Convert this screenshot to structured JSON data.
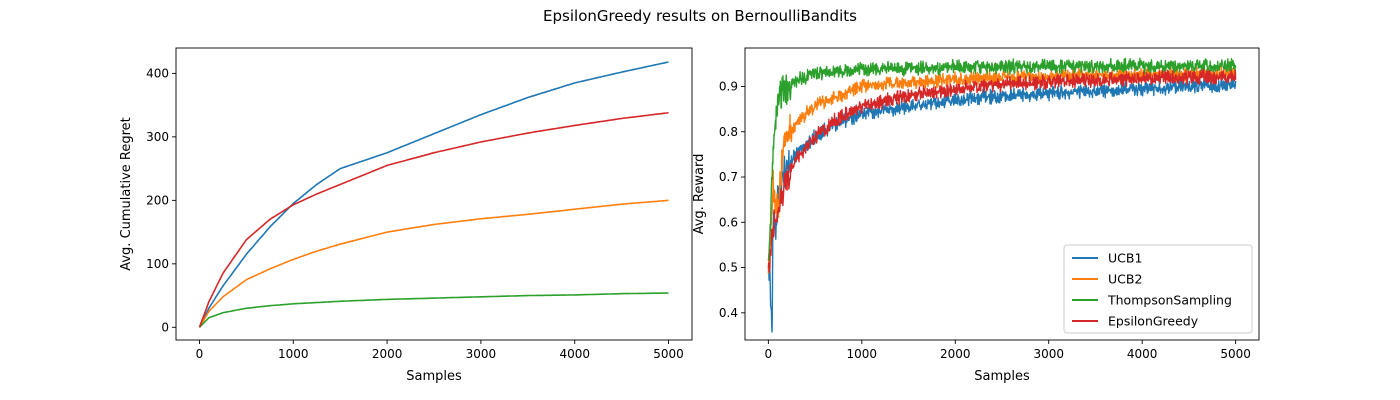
{
  "figure_title": "EpsilonGreedy results on BernoulliBandits",
  "chart_data": [
    {
      "type": "line",
      "xlabel": "Samples",
      "ylabel": "Avg. Cumulative Regret",
      "xlim": [
        -250,
        5250
      ],
      "ylim": [
        -20,
        440
      ],
      "xticks": [
        0,
        1000,
        2000,
        3000,
        4000,
        5000
      ],
      "yticks": [
        0,
        100,
        200,
        300,
        400
      ],
      "grid": false,
      "legend": "none",
      "series": [
        {
          "name": "UCB1",
          "color": "#1f77b4",
          "x": [
            0,
            100,
            250,
            500,
            750,
            1000,
            1250,
            1500,
            2000,
            2500,
            3000,
            3500,
            4000,
            4500,
            5000
          ],
          "y": [
            0,
            30,
            65,
            115,
            158,
            195,
            225,
            250,
            275,
            305,
            335,
            362,
            385,
            402,
            418
          ]
        },
        {
          "name": "UCB2",
          "color": "#ff7f0e",
          "x": [
            0,
            100,
            250,
            500,
            750,
            1000,
            1250,
            1500,
            2000,
            2500,
            3000,
            3500,
            4000,
            4500,
            5000
          ],
          "y": [
            0,
            25,
            48,
            75,
            92,
            107,
            120,
            131,
            150,
            162,
            171,
            178,
            186,
            194,
            200
          ]
        },
        {
          "name": "ThompsonSampling",
          "color": "#2ca02c",
          "x": [
            0,
            100,
            250,
            500,
            750,
            1000,
            1500,
            2000,
            2500,
            3000,
            3500,
            4000,
            4500,
            5000
          ],
          "y": [
            0,
            15,
            23,
            30,
            34,
            37,
            41,
            44,
            46,
            48,
            50,
            51,
            53,
            54
          ]
        },
        {
          "name": "EpsilonGreedy",
          "color": "#d62728",
          "x": [
            0,
            100,
            250,
            500,
            750,
            1000,
            1250,
            1500,
            2000,
            2500,
            3000,
            3500,
            4000,
            4500,
            5000
          ],
          "y": [
            0,
            40,
            85,
            138,
            170,
            193,
            210,
            225,
            255,
            275,
            292,
            306,
            318,
            329,
            338
          ]
        }
      ]
    },
    {
      "type": "line",
      "xlabel": "Samples",
      "ylabel": "Avg. Reward",
      "xlim": [
        -250,
        5250
      ],
      "ylim": [
        0.34,
        0.985
      ],
      "xticks": [
        0,
        1000,
        2000,
        3000,
        4000,
        5000
      ],
      "yticks": [
        0.4,
        0.5,
        0.6,
        0.7,
        0.8,
        0.9
      ],
      "grid": false,
      "legend": "lower-right",
      "noise_amplitude": 0.018,
      "series": [
        {
          "name": "UCB1",
          "color": "#1f77b4",
          "x": [
            0,
            20,
            40,
            50,
            80,
            100,
            150,
            200,
            300,
            500,
            750,
            1000,
            1500,
            2000,
            2500,
            3000,
            3500,
            4000,
            4500,
            5000
          ],
          "y": [
            0.5,
            0.46,
            0.37,
            0.62,
            0.6,
            0.65,
            0.7,
            0.72,
            0.75,
            0.79,
            0.82,
            0.84,
            0.855,
            0.87,
            0.88,
            0.885,
            0.89,
            0.895,
            0.9,
            0.905
          ]
        },
        {
          "name": "UCB2",
          "color": "#ff7f0e",
          "x": [
            0,
            50,
            100,
            150,
            200,
            300,
            500,
            750,
            1000,
            1500,
            2000,
            2500,
            3000,
            3500,
            4000,
            4500,
            5000
          ],
          "y": [
            0.5,
            0.68,
            0.63,
            0.75,
            0.79,
            0.82,
            0.86,
            0.88,
            0.9,
            0.91,
            0.915,
            0.92,
            0.92,
            0.925,
            0.925,
            0.928,
            0.93
          ]
        },
        {
          "name": "ThompsonSampling",
          "color": "#2ca02c",
          "x": [
            0,
            30,
            60,
            100,
            150,
            200,
            300,
            500,
            750,
            1000,
            1500,
            2000,
            3000,
            4000,
            5000
          ],
          "y": [
            0.5,
            0.65,
            0.8,
            0.86,
            0.89,
            0.9,
            0.915,
            0.93,
            0.935,
            0.938,
            0.94,
            0.942,
            0.945,
            0.945,
            0.945
          ]
        },
        {
          "name": "EpsilonGreedy",
          "color": "#d62728",
          "x": [
            0,
            50,
            100,
            200,
            300,
            500,
            750,
            1000,
            1500,
            2000,
            2500,
            3000,
            3500,
            4000,
            4500,
            5000
          ],
          "y": [
            0.5,
            0.58,
            0.62,
            0.7,
            0.74,
            0.79,
            0.83,
            0.855,
            0.88,
            0.895,
            0.905,
            0.91,
            0.915,
            0.918,
            0.92,
            0.922
          ]
        }
      ]
    }
  ]
}
